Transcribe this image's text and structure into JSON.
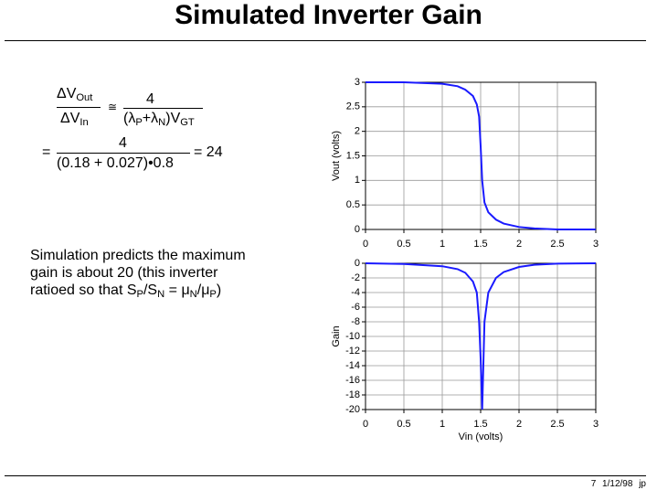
{
  "title": "Simulated Inverter Gain",
  "formula": {
    "lhs_num": [
      "ΔV",
      "Out"
    ],
    "lhs_den": [
      "ΔV",
      "In"
    ],
    "approx": "≅",
    "rhs_num": "4",
    "rhs_den": [
      "(λ",
      "P",
      "+λ",
      "N",
      ")V",
      "GT"
    ],
    "eq": "=",
    "num2": "4",
    "den2": "(0.18 + 0.027)•0.8",
    "result": "= 24"
  },
  "note": {
    "lines": [
      "Simulation predicts the maximum",
      "gain is about 20 (this inverter"
    ],
    "last": [
      "ratioed so that S",
      "P",
      "/S",
      "N",
      " = μ",
      "N",
      "/μ",
      "P",
      ")"
    ]
  },
  "chart_data": [
    {
      "type": "line",
      "y_label": "Vout (volts)",
      "color": "#1a1aff",
      "x": [
        0,
        0.5,
        1.0,
        1.2,
        1.3,
        1.4,
        1.45,
        1.48,
        1.5,
        1.52,
        1.55,
        1.6,
        1.7,
        1.8,
        2.0,
        2.2,
        2.5,
        3.0
      ],
      "values": [
        3,
        3,
        2.97,
        2.92,
        2.85,
        2.72,
        2.55,
        2.3,
        1.7,
        1.0,
        0.55,
        0.35,
        0.2,
        0.12,
        0.05,
        0.02,
        0,
        0
      ],
      "xlim": [
        0,
        3
      ],
      "xticks": [
        0,
        0.5,
        1,
        1.5,
        2,
        2.5,
        3
      ],
      "ylim": [
        0,
        3
      ],
      "yticks": [
        0,
        0.5,
        1,
        1.5,
        2,
        2.5,
        3
      ],
      "grid": true
    },
    {
      "type": "line",
      "x_label": "Vin (volts)",
      "y_label": "Gain",
      "color": "#1a1aff",
      "x": [
        0,
        0.5,
        1.0,
        1.2,
        1.3,
        1.4,
        1.45,
        1.48,
        1.5,
        1.52,
        1.55,
        1.6,
        1.7,
        1.8,
        2.0,
        2.2,
        2.5,
        3.0
      ],
      "values": [
        0,
        -0.1,
        -0.4,
        -0.8,
        -1.3,
        -2.5,
        -4,
        -8,
        -13,
        -20,
        -8,
        -4,
        -2,
        -1.2,
        -0.5,
        -0.2,
        -0.05,
        0
      ],
      "xlim": [
        0,
        3
      ],
      "xticks": [
        0,
        0.5,
        1,
        1.5,
        2,
        2.5,
        3
      ],
      "ylim": [
        -20,
        0
      ],
      "yticks": [
        -20,
        -18,
        -16,
        -14,
        -12,
        -10,
        -8,
        -6,
        -4,
        -2,
        0
      ],
      "grid": true
    }
  ],
  "footer": {
    "page": "7",
    "date": "1/12/98",
    "author": "jp"
  }
}
